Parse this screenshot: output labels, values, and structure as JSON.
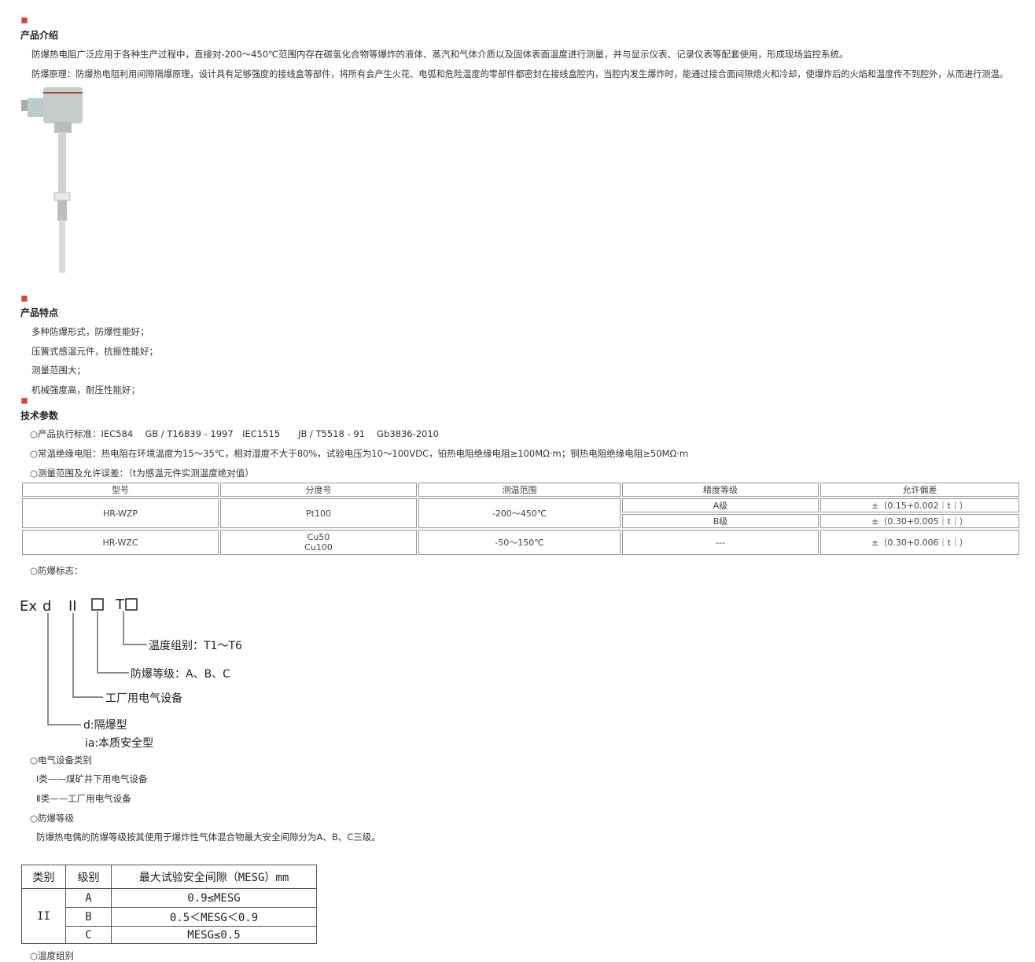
{
  "intro": {
    "title": "产品介绍",
    "paragraphs": [
      "防爆热电阻广泛应用于各种生产过程中，直接对-200～450℃范围内存在碳氢化合物等爆炸的液体、蒸汽和气体介质以及固体表面温度进行测量，并与显示仪表、记录仪表等配套使用，形成现场监控系统。",
      "防爆原理：防爆热电阻利用间隙隔爆原理，设计具有足够强度的接线盒等部件，将所有会产生火花、电弧和危险温度的零部件都密封在接线盒腔内，当腔内发生爆炸时，能通过接合面间隙熄火和冷却，使爆炸后的火焰和温度传不到腔外，从而进行测温。"
    ]
  },
  "features": {
    "title": "产品特点",
    "items": [
      "多种防爆形式，防爆性能好；",
      "压簧式感温元件，抗振性能好；",
      "测量范围大；",
      "机械强度高，耐压性能好；"
    ]
  },
  "tech": {
    "title": "技术参数",
    "items": [
      "○产品执行标准：IEC584　 GB / T16839 - 1997　IEC1515　　JB / T5518 - 91　 Gb3836-2010",
      "○常温绝缘电阻：热电阻在环境温度为15～35℃，相对湿度不大于80%，试验电压为10～100VDC，铂热电阻绝缘电阻≥100MΩ·m；铜热电阻绝缘电阻≥50MΩ·m",
      "○测量范围及允许误差：（t为感温元件实测温度绝对值）"
    ]
  },
  "spec_table": {
    "headers": [
      "型号",
      "分度号",
      "测温范围",
      "精度等级",
      "允许偏差"
    ],
    "r1": {
      "model": "HR-WZP",
      "index": "Pt100",
      "range": "-200～450℃",
      "gradeA": "A级",
      "devA": "±（0.15+0.002｜t｜）",
      "gradeB": "B级",
      "devB": "±（0.30+0.005｜t｜）"
    },
    "r2": {
      "model": "HR-WZC",
      "index1": "Cu50",
      "index2": "Cu100",
      "range": "-50～150℃",
      "grade": "---",
      "dev": "±（0.30+0.006｜t｜）"
    }
  },
  "ex_mark_label": "○防爆标志：",
  "diagram": {
    "ex": "Ex",
    "d": "d",
    "ii": "II",
    "t": "T",
    "temp": "温度组别：T1～T6",
    "level": "防爆等级：A、B、C",
    "factory": "工厂用电气设备",
    "d_type": "d:隔爆型",
    "ia_type": "ia:本质安全型"
  },
  "category": {
    "title": "○电气设备类别",
    "items": [
      "Ⅰ类——煤矿井下用电气设备",
      "Ⅱ类——工厂用电气设备"
    ]
  },
  "grade": {
    "title": "○防爆等级",
    "text": "防爆热电偶的防爆等级按其使用于爆炸性气体混合物最大安全间隙分为A、B、C三级。"
  },
  "mesg_table": {
    "headers": [
      "类别",
      "级别",
      "最大试验安全间隙（MESG）mm"
    ],
    "cls": "II",
    "rows": [
      [
        "A",
        "0.9≤MESG"
      ],
      [
        "B",
        "0.5＜MESG＜0.9"
      ],
      [
        "C",
        "MESG≤0.5"
      ]
    ]
  },
  "temp_group_label": "○温度组别"
}
